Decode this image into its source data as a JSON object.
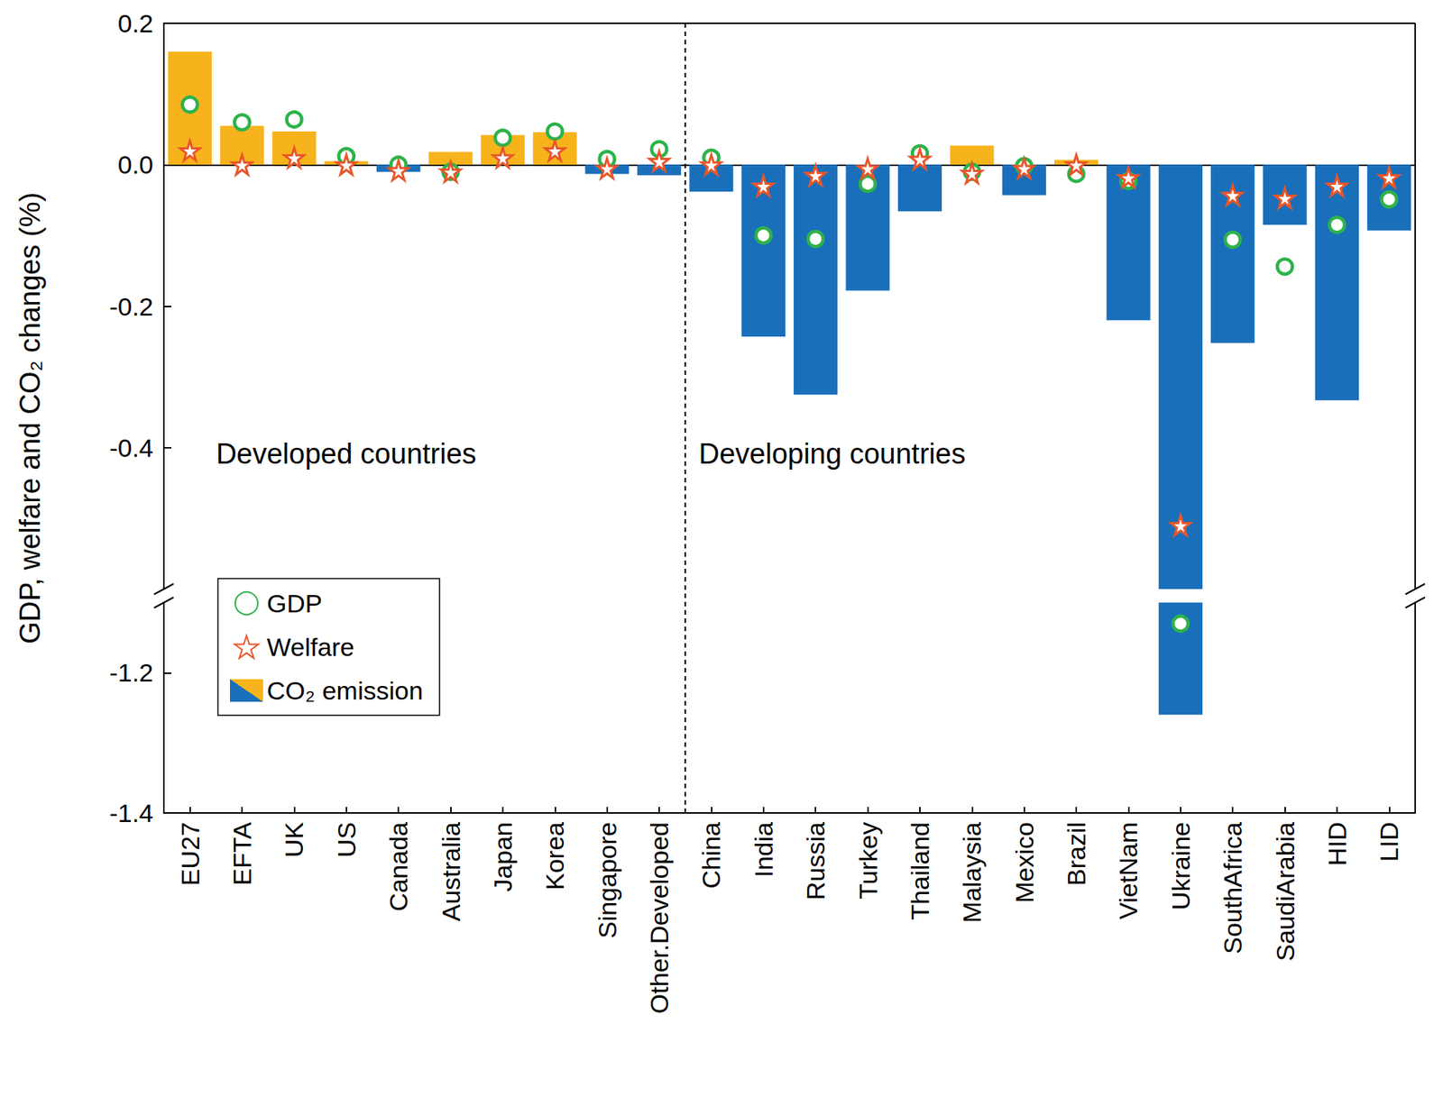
{
  "chart_data": {
    "type": "bar",
    "y_label": "GDP, welfare and CO₂ changes (%)",
    "categories": [
      "EU27",
      "EFTA",
      "UK",
      "US",
      "Canada",
      "Australia",
      "Japan",
      "Korea",
      "Singapore",
      "Other.Developed",
      "China",
      "India",
      "Russia",
      "Turkey",
      "Thailand",
      "Malaysia",
      "Mexico",
      "Brazil",
      "VietNam",
      "Ukraine",
      "SouthAfrica",
      "SaudiArabia",
      "HID",
      "LID"
    ],
    "series": [
      {
        "name": "CO₂ emission",
        "type": "bar",
        "colors": [
          "#f7b31b",
          "#f7b31b",
          "#f7b31b",
          "#f7b31b",
          "#1a6fba",
          "#f7b31b",
          "#f7b31b",
          "#f7b31b",
          "#1a6fba",
          "#1a6fba",
          "#1a6fba",
          "#1a6fba",
          "#1a6fba",
          "#1a6fba",
          "#1a6fba",
          "#f7b31b",
          "#1a6fba",
          "#f7b31b",
          "#1a6fba",
          "#1a6fba",
          "#1a6fba",
          "#1a6fba",
          "#1a6fba",
          "#1a6fba"
        ],
        "values": [
          0.16,
          0.055,
          0.047,
          0.005,
          -0.01,
          0.018,
          0.042,
          0.046,
          -0.013,
          -0.015,
          -0.038,
          -0.243,
          -0.325,
          -0.178,
          -0.066,
          0.027,
          -0.043,
          0.007,
          -0.22,
          -1.26,
          -0.252,
          -0.085,
          -0.333,
          -0.093
        ]
      },
      {
        "name": "GDP",
        "type": "scatter",
        "marker": "circle",
        "color": "#2db34a",
        "values": [
          0.085,
          0.06,
          0.064,
          0.012,
          0.0,
          -0.01,
          0.038,
          0.047,
          0.008,
          0.022,
          0.01,
          -0.1,
          -0.105,
          -0.027,
          0.016,
          -0.01,
          -0.002,
          -0.013,
          -0.023,
          -1.13,
          -0.106,
          -0.144,
          -0.085,
          -0.049
        ]
      },
      {
        "name": "Welfare",
        "type": "scatter",
        "marker": "star",
        "color": "#e8562a",
        "values": [
          0.02,
          0.0,
          0.01,
          0.0,
          -0.008,
          -0.01,
          0.01,
          0.02,
          -0.005,
          0.005,
          0.0,
          -0.03,
          -0.015,
          -0.005,
          0.008,
          -0.012,
          -0.005,
          0.0,
          -0.018,
          -0.51,
          -0.043,
          -0.047,
          -0.03,
          -0.018
        ]
      }
    ],
    "legend_order": [
      "GDP",
      "Welfare",
      "CO₂ emission"
    ],
    "ylim": [
      -1.4,
      0.2
    ],
    "y_break": [
      -1.1,
      -0.6
    ],
    "yticks": [
      -1.4,
      -1.2,
      -0.4,
      -0.2,
      {
        "value": 0,
        "label": "0.0"
      },
      0.2
    ],
    "groups": [
      {
        "label": "Developed countries",
        "count": 10
      },
      {
        "label": "Developing countries",
        "count": 14
      }
    ],
    "legend": "lower left",
    "grid": false
  }
}
